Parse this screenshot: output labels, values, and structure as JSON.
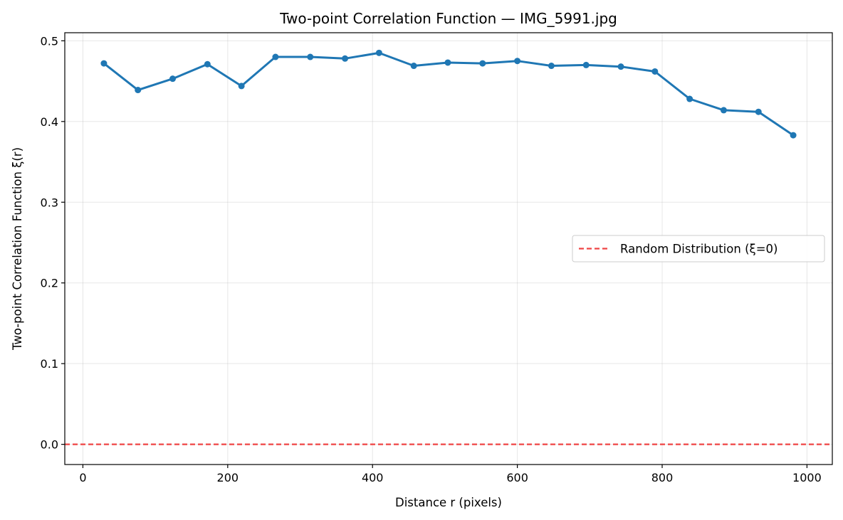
{
  "chart_data": {
    "type": "line",
    "title": "Two-point Correlation Function — IMG_5991.jpg",
    "xlabel": "Distance r (pixels)",
    "ylabel": "Two-point Correlation Function ξ(r)",
    "xlim": [
      -25,
      1035
    ],
    "ylim": [
      -0.025,
      0.51
    ],
    "xticks": [
      0,
      200,
      400,
      600,
      800,
      1000
    ],
    "yticks": [
      0.0,
      0.1,
      0.2,
      0.3,
      0.4,
      0.5
    ],
    "xtick_labels": [
      "0",
      "200",
      "400",
      "600",
      "800",
      "1000"
    ],
    "ytick_labels": [
      "0.0",
      "0.1",
      "0.2",
      "0.3",
      "0.4",
      "0.5"
    ],
    "grid": true,
    "legend_position": "center-right",
    "series": [
      {
        "x": [
          29,
          76,
          124,
          172,
          219,
          266,
          314,
          362,
          409,
          457,
          504,
          552,
          600,
          647,
          695,
          743,
          790,
          838,
          885,
          933,
          981
        ],
        "y": [
          0.472,
          0.439,
          0.453,
          0.471,
          0.444,
          0.48,
          0.48,
          0.478,
          0.485,
          0.469,
          0.473,
          0.472,
          0.475,
          0.469,
          0.47,
          0.468,
          0.462,
          0.428,
          0.414,
          0.412,
          0.383
        ],
        "color": "#1f77b4",
        "style": "line-with-markers"
      }
    ],
    "reference_lines": [
      {
        "name": "Random Distribution (ξ=0)",
        "y": 0.0,
        "color": "#ef4444",
        "style": "dashed"
      }
    ]
  }
}
